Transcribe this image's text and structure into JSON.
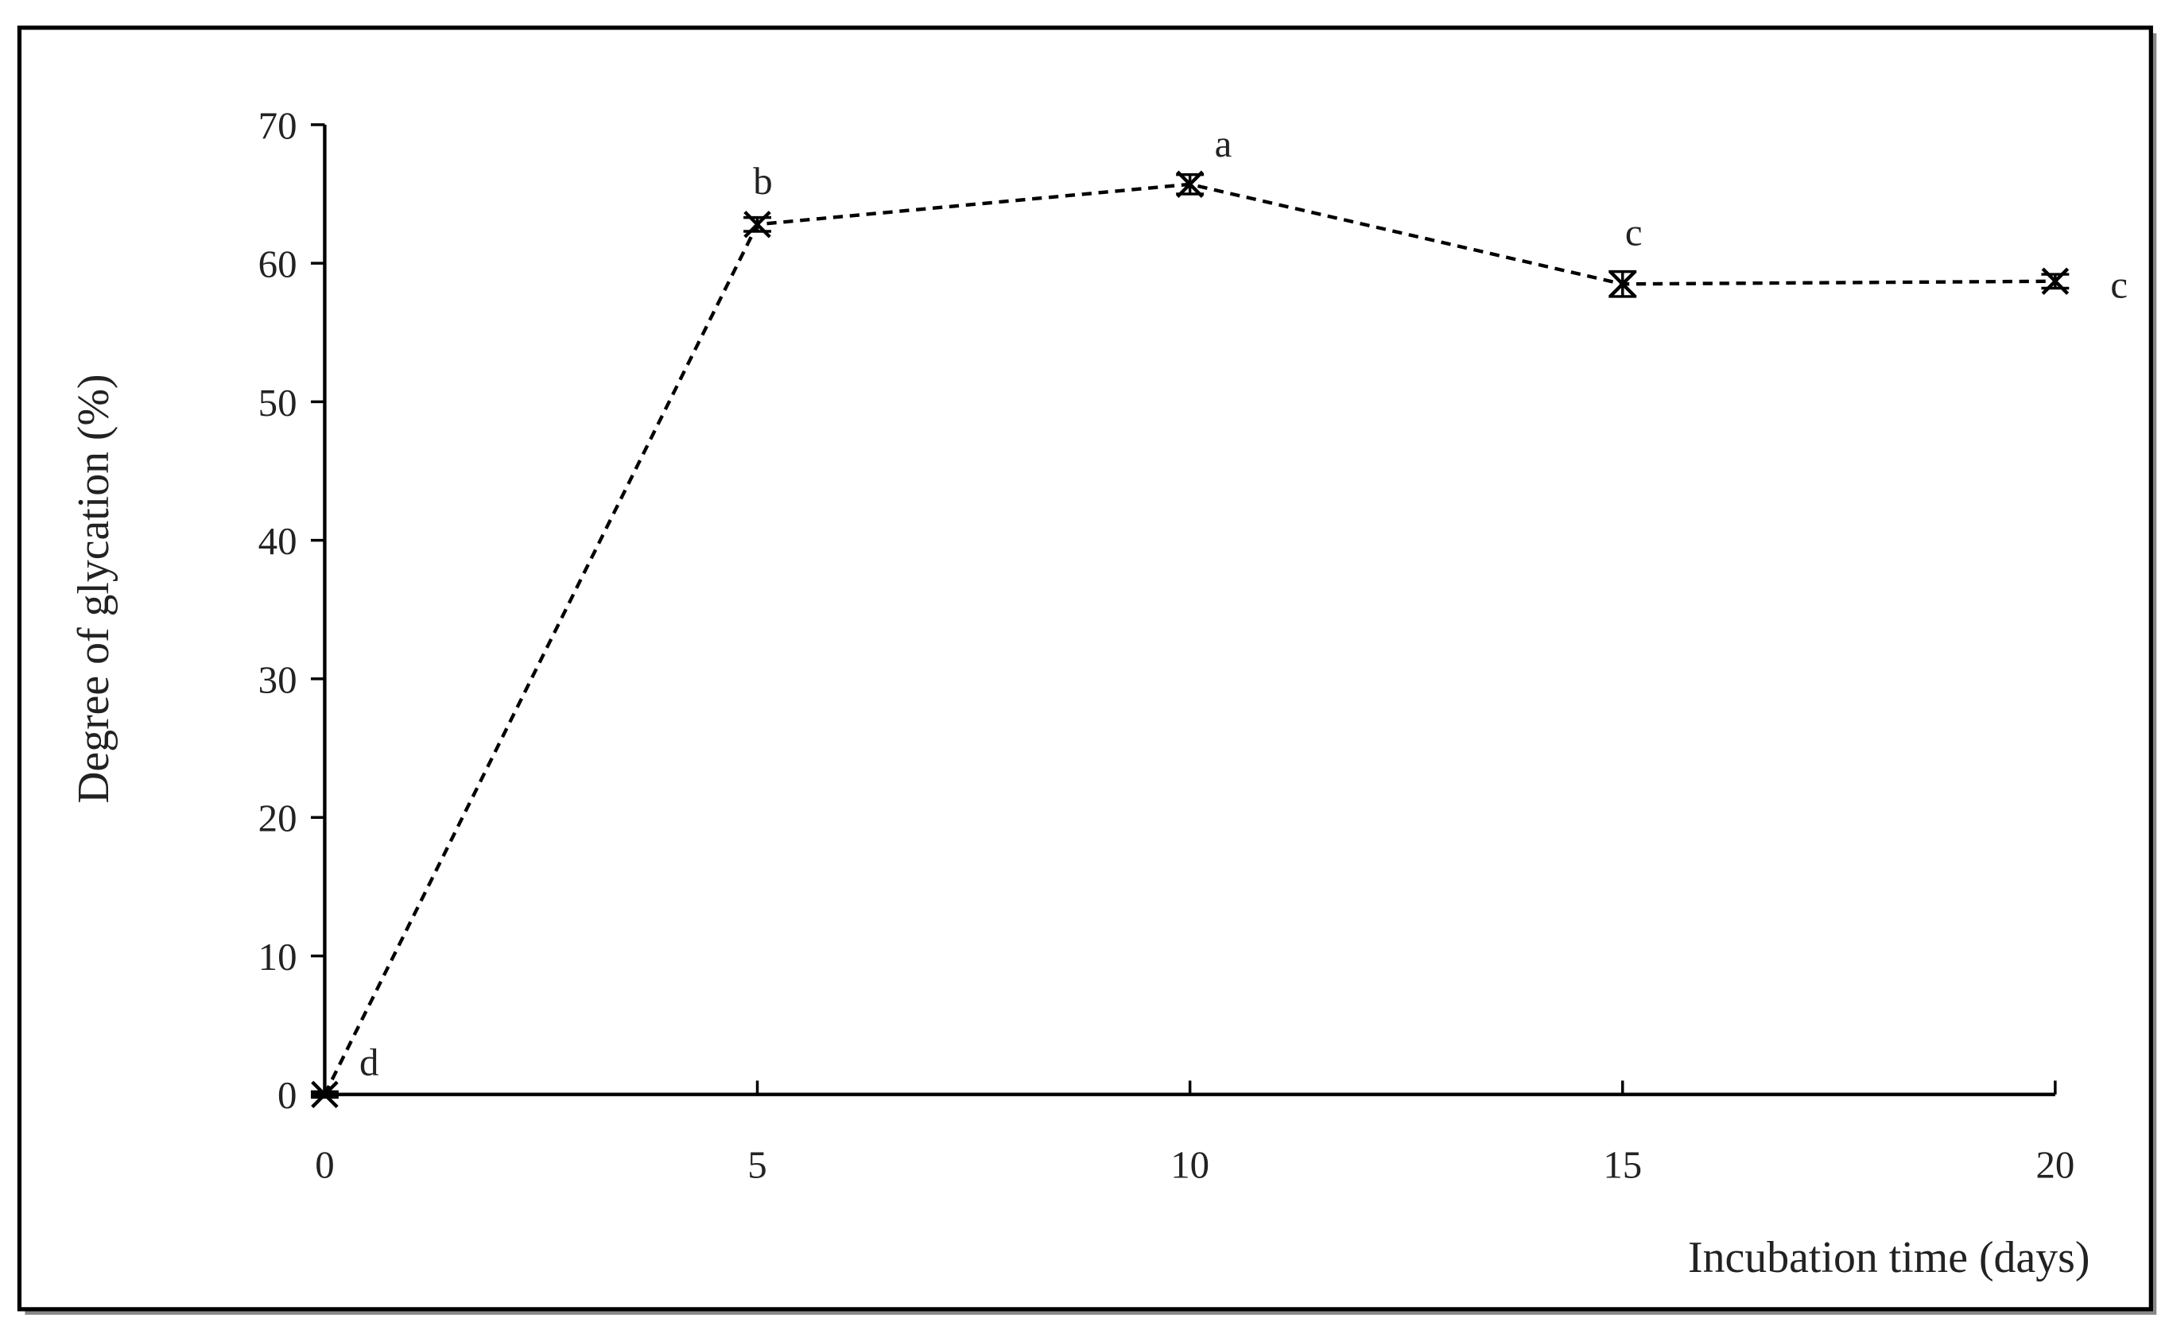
{
  "chart_data": {
    "type": "line",
    "x_label": "Incubation time (days)",
    "y_label": "Degree of glycation (%)",
    "x": [
      0,
      5,
      10,
      15,
      20
    ],
    "series": [
      {
        "color": "#000000",
        "values": [
          0,
          62.8,
          65.7,
          58.5,
          58.7
        ],
        "errors": [
          0.2,
          0.5,
          0.7,
          0.9,
          0.5
        ]
      }
    ],
    "point_labels": [
      "d",
      "b",
      "a",
      "c",
      "c"
    ],
    "xlim": [
      0,
      20
    ],
    "xticks": [
      0,
      5,
      10,
      15,
      20
    ],
    "ylim": [
      0,
      70
    ],
    "yticks": [
      0,
      10,
      20,
      30,
      40,
      50,
      60,
      70
    ],
    "grid": false
  }
}
